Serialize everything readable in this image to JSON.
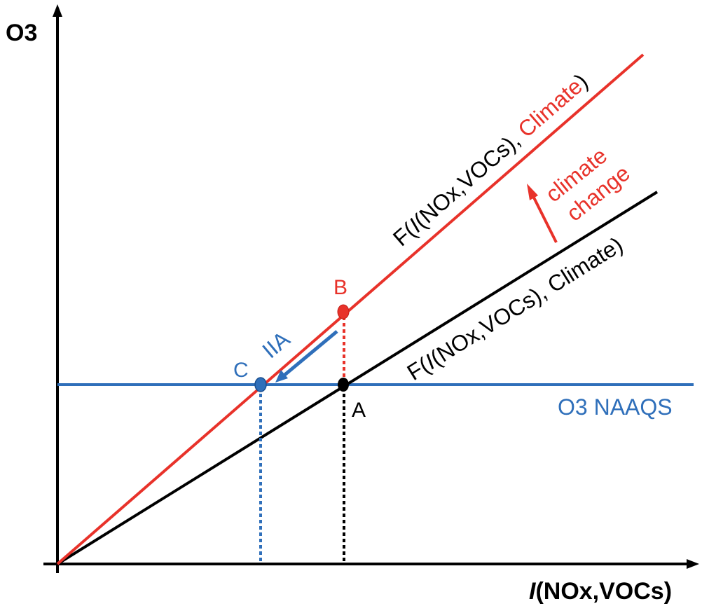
{
  "colors": {
    "baseline": "#000000",
    "climate": "#e8322a",
    "naaqs": "#2f6fba"
  },
  "axes": {
    "y_title": "O3",
    "x_title_italic": "I",
    "x_title_rest": "(NOx,VOCs)"
  },
  "curves": {
    "climate_prefix": "F(",
    "climate_italic": "I",
    "climate_middle": "(NOx,VOCs), ",
    "climate_word": "Climate",
    "climate_suffix": ")",
    "baseline_prefix": "F(",
    "baseline_italic": "I",
    "baseline_rest": "(NOx,VOCs), Climate)"
  },
  "naaqs_label": "O3 NAAQS",
  "points": {
    "a": "A",
    "b": "B",
    "c": "C"
  },
  "annotations": {
    "climate_change_line1": "climate",
    "climate_change_line2": "change",
    "iia": "IIA"
  }
}
